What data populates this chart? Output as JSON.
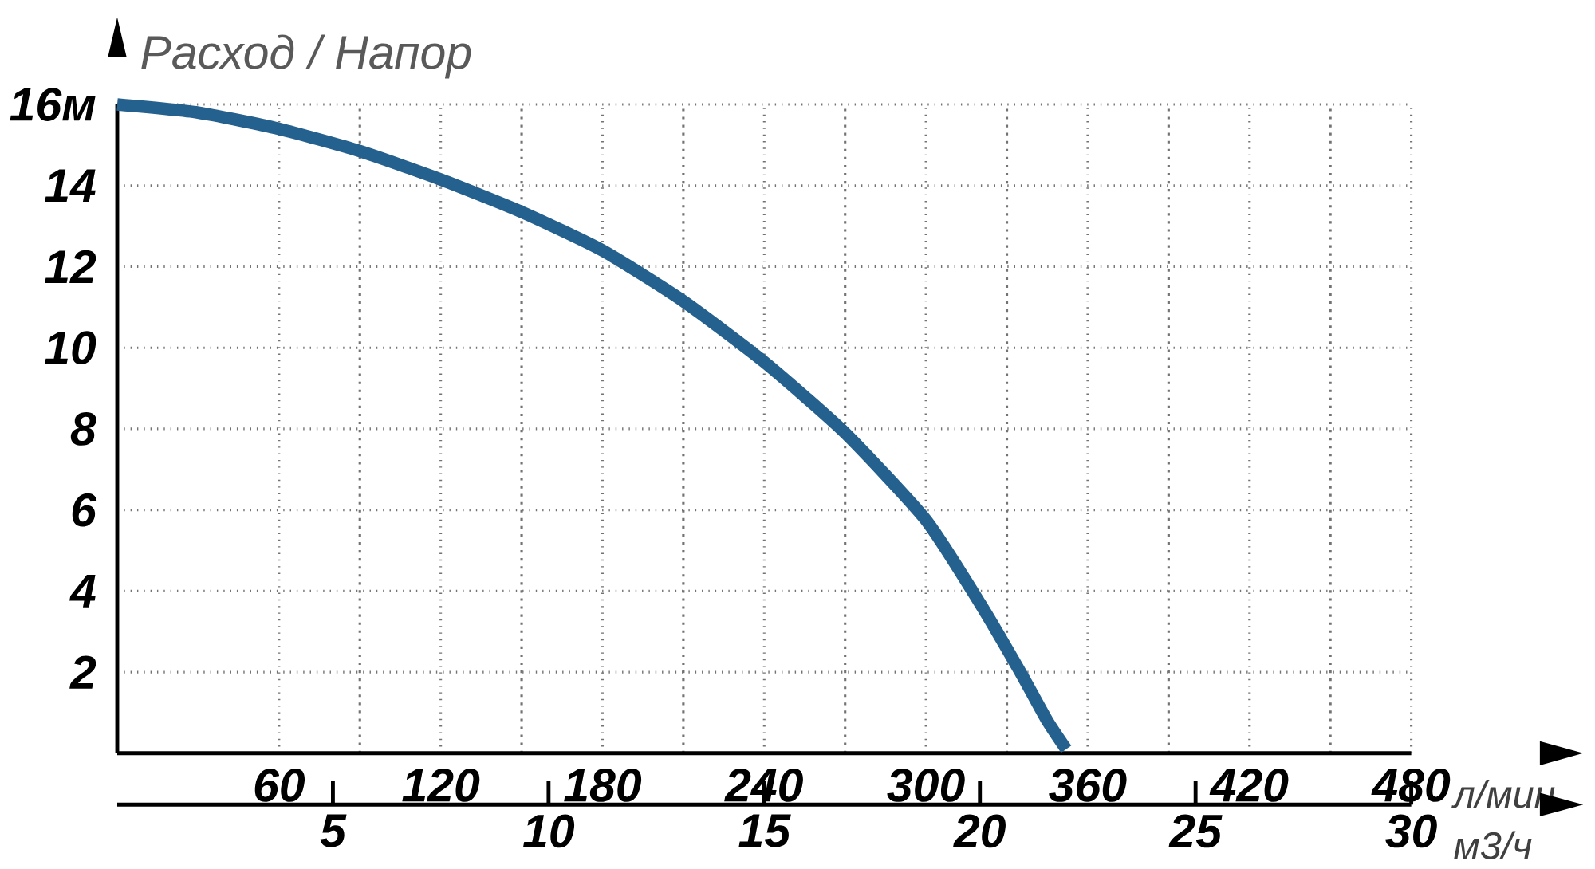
{
  "chart_data": {
    "type": "line",
    "ylabel": "Расход / Напор",
    "xlabel": "л/мин",
    "x2label": "м3/ч",
    "x": [
      0,
      30,
      60,
      90,
      120,
      150,
      180,
      210,
      240,
      270,
      300,
      320,
      335,
      345,
      352
    ],
    "series": [
      {
        "color": "#25618f",
        "values": [
          16,
          15.8,
          15.4,
          14.85,
          14.15,
          13.35,
          12.4,
          11.15,
          9.65,
          7.9,
          5.75,
          3.7,
          2.0,
          0.8,
          0.1
        ]
      }
    ],
    "xlim": [
      0,
      480
    ],
    "ylim": [
      0,
      16
    ],
    "xticks": [
      60,
      120,
      180,
      240,
      300,
      360,
      420,
      480
    ],
    "yticks": [
      2,
      4,
      6,
      8,
      10,
      12,
      14,
      {
        "value": 16,
        "label": "16м"
      }
    ],
    "x2lim": [
      0,
      30
    ],
    "x2ticks": [
      5,
      10,
      15,
      20,
      25,
      30
    ],
    "grid": true
  }
}
